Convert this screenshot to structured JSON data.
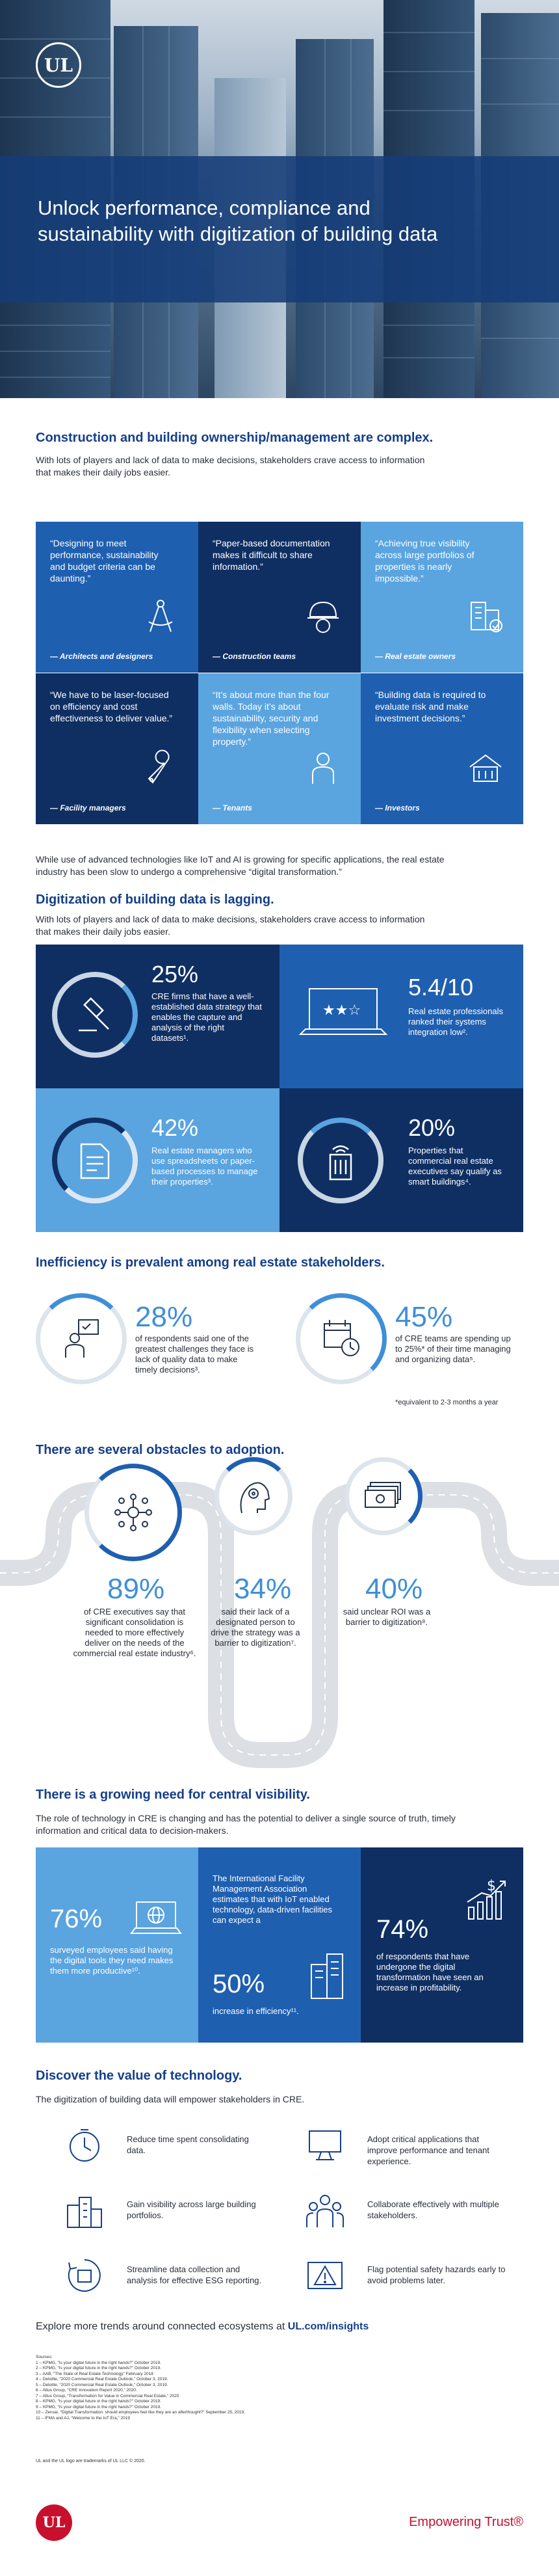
{
  "hero": {
    "logo_text": "UL",
    "title": "Unlock performance, compliance and sustainability with digitization of building data"
  },
  "section1": {
    "heading": "Construction and building ownership/management are complex.",
    "intro": "With lots of players and lack of data to make decisions, stakeholders crave access to information that makes their daily jobs easier.",
    "quotes": [
      {
        "quote": "“Designing to meet performance, sustainability and budget criteria can be daunting.”",
        "role": "— Architects and designers",
        "icon": "compass-icon"
      },
      {
        "quote": "“Paper-based documentation makes it difficult to share information.”",
        "role": "— Construction teams",
        "icon": "hard-hat-icon"
      },
      {
        "quote": "“Achieving true visibility across large portfolios of properties is nearly impossible.”",
        "role": "— Real estate owners",
        "icon": "building-check-icon"
      },
      {
        "quote": "“We have to be laser-focused on efficiency and cost effectiveness to deliver value.”",
        "role": "— Facility managers",
        "icon": "wrench-icon"
      },
      {
        "quote": "“It’s about more than the four walls. Today it’s about sustainability, security and flexibility when selecting property.”",
        "role": "— Tenants",
        "icon": "person-icon"
      },
      {
        "quote": "“Building data is required to evaluate risk and make investment decisions.”",
        "role": "— Investors",
        "icon": "building-money-icon"
      }
    ],
    "outro": "While use of advanced technologies like IoT and AI is growing for specific applications, the real estate industry has been slow to undergo a comprehensive “digital transformation.”"
  },
  "section2": {
    "heading": "Digitization of building data is lagging.",
    "intro": "With lots of players and lack of data to make decisions, stakeholders crave access to information that makes their daily jobs easier.",
    "stats": [
      {
        "value": "25%",
        "text": "CRE firms that have a well-established data strategy that enables the capture and analysis of the right datasets¹.",
        "icon": "gavel-icon"
      },
      {
        "value": "5.4/10",
        "text": "Real estate professionals ranked their systems integration low².",
        "icon": "laptop-rating-icon"
      },
      {
        "value": "42%",
        "text": "Real estate managers who use spreadsheets or paper-based processes to manage their properties³.",
        "icon": "document-icon"
      },
      {
        "value": "20%",
        "text": "Properties that commercial real estate executives say qualify as smart buildings⁴.",
        "icon": "smart-building-icon"
      }
    ]
  },
  "section3": {
    "heading": "Inefficiency is prevalent among real estate stakeholders.",
    "items": [
      {
        "value": "28%",
        "text": "of respondents said one of the greatest challenges they face is lack of quality data to make timely decisions³.",
        "icon": "person-checklist-icon"
      },
      {
        "value": "45%",
        "text": "of CRE teams are spending up to 25%* of their time managing and organizing data⁵.",
        "icon": "calendar-clock-icon"
      }
    ],
    "footnote": "*equivalent to 2-3 months a year"
  },
  "section4": {
    "heading": "There are several obstacles to adoption.",
    "items": [
      {
        "value": "89%",
        "text": "of CRE executives say that significant consolidation is needed to more effectively deliver on the needs of the commercial real estate industry⁶.",
        "icon": "network-icon"
      },
      {
        "value": "34%",
        "text": "said their lack of a designated person to drive the strategy was a barrier to digitization⁷.",
        "icon": "person-gear-icon"
      },
      {
        "value": "40%",
        "text": "said unclear ROI was a barrier to digitization⁸.",
        "icon": "money-stack-icon"
      }
    ]
  },
  "section5": {
    "heading": "There is a growing need for central visibility.",
    "intro": "The role of technology in CRE is changing and has the potential to deliver a single source of truth, timely information and critical data to decision-makers.",
    "left_value": "76%",
    "left_text": "surveyed employees said having the digital tools they need makes them more productive¹⁰.",
    "mid_text": "The International Facility Management Association estimates that with IoT enabled technology, data-driven facilities can expect a",
    "mid_value": "50%",
    "mid_tail": "increase in efficiency¹¹.",
    "right_value": "74%",
    "right_text": "of respondents that have undergone the digital transformation have seen an increase in profitability."
  },
  "section6": {
    "heading": "Discover the value of technology.",
    "intro": "The digitization of building data will empower stakeholders in CRE.",
    "items": [
      {
        "text": "Reduce time spent consolidating data.",
        "icon": "clock-icon"
      },
      {
        "text": "Adopt critical applications that improve performance and tenant experience.",
        "icon": "monitor-icon"
      },
      {
        "text": "Gain visibility across large building portfolios.",
        "icon": "buildings-icon"
      },
      {
        "text": "Collaborate effectively with multiple stakeholders.",
        "icon": "people-icon"
      },
      {
        "text": "Streamline data collection and analysis for effective ESG reporting.",
        "icon": "cycle-icon"
      },
      {
        "text": "Flag potential safety hazards early to avoid problems later.",
        "icon": "warning-icon"
      }
    ]
  },
  "cta": {
    "prefix": "Explore more trends around connected ecosystems at ",
    "link": "UL.com/insights"
  },
  "sources": {
    "title": "Sources:",
    "lines": [
      "1 – KPMG, “Is your digital future in the right hands?” October 2019.",
      "2 – KPMG, “Is your digital future in the right hands?” October 2019.",
      "3 – AAB, “The State of Real Estate Technology” February 2018",
      "4 – Deloitte, “2020 Commercial Real Estate Outlook,” October 3, 2019.",
      "5 – Deloitte, “2020 Commercial Real Estate Outlook,” October 3, 2019.",
      "6 – Altus Group, “CRE Innovation Report 2020,” 2020.",
      "7 – Altus Group, “Transformation for Value in Commercial Real Estate,” 2020",
      "8 – KPMG, “Is your digital future in the right hands?” October 2019.",
      "9 – KPMG, “Is your digital future in the right hands?” October 2019.",
      "10 – Zensai, “Digital Transformation: should employees feel like they are an afterthought?” September 25, 2019.",
      "11 – IFMA and AJ, “Welcome to the IoT Era,” 2019"
    ],
    "trademark": "UL and the UL logo are trademarks of UL LLC © 2020."
  },
  "footer": {
    "logo_text": "UL",
    "tagline": "Empowering Trust®"
  },
  "colors": {
    "navy": "#153f8a",
    "dark_navy": "#0f2f63",
    "mid_blue": "#1f5fb0",
    "light_blue": "#5aa4e0",
    "accent_red": "#c8102e"
  }
}
